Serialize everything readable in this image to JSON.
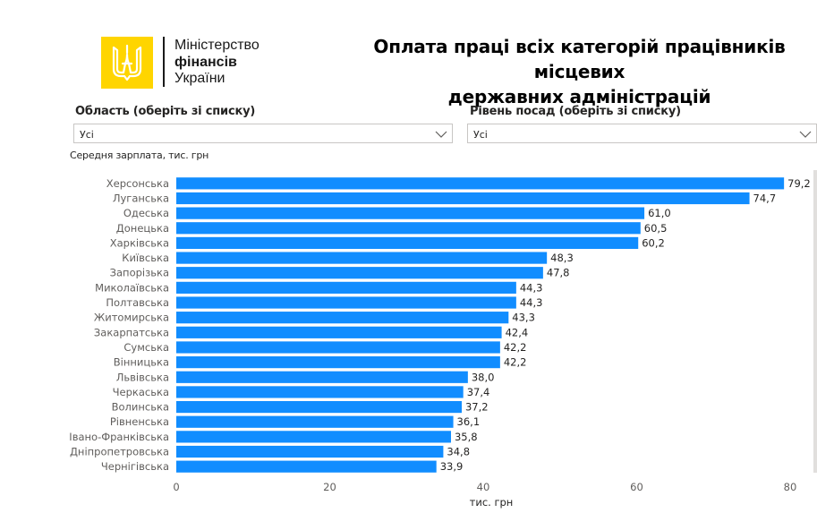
{
  "logo": {
    "line1": "Міністерство",
    "line2": "фінансів",
    "line3": "України",
    "color": "#ffd500"
  },
  "title": {
    "line1": "Оплата праці всіх категорій працівників місцевих",
    "line2": "державних адміністрацій"
  },
  "filters": {
    "region": {
      "label": "Область (оберіть зі списку)",
      "value": "Усі",
      "icon": "chevron-down-icon"
    },
    "position_level": {
      "label": "Рівень посад (оберіть зі списку)",
      "value": "Усі",
      "icon": "chevron-down-icon"
    }
  },
  "chart_subtitle": "Середня зарплата, тис. грн",
  "chart_data": {
    "type": "bar",
    "orientation": "horizontal",
    "bar_color": "#118dff",
    "categories": [
      "Херсонська",
      "Луганська",
      "Одеська",
      "Донецька",
      "Харківська",
      "Київська",
      "Запорізька",
      "Миколаївська",
      "Полтавська",
      "Житомирська",
      "Закарпатська",
      "Сумська",
      "Вінницька",
      "Львівська",
      "Черкаська",
      "Волинська",
      "Рівненська",
      "Івано-Франківська",
      "Дніпропетровська",
      "Чернігівська"
    ],
    "values": [
      79.2,
      74.7,
      61.0,
      60.5,
      60.2,
      48.3,
      47.8,
      44.3,
      44.3,
      43.3,
      42.4,
      42.2,
      42.2,
      38.0,
      37.4,
      37.2,
      36.1,
      35.8,
      34.8,
      33.9
    ],
    "value_labels": [
      "79,2",
      "74,7",
      "61,0",
      "60,5",
      "60,2",
      "48,3",
      "47,8",
      "44,3",
      "44,3",
      "43,3",
      "42,4",
      "42,2",
      "42,2",
      "38,0",
      "37,4",
      "37,2",
      "36,1",
      "35,8",
      "34,8",
      "33,9"
    ],
    "xticks": [
      "0",
      "20",
      "40",
      "60",
      "80"
    ],
    "xlim": [
      0,
      80
    ],
    "xlabel": "тис. грн",
    "ylabel": "",
    "grid": false,
    "legend": "none"
  }
}
